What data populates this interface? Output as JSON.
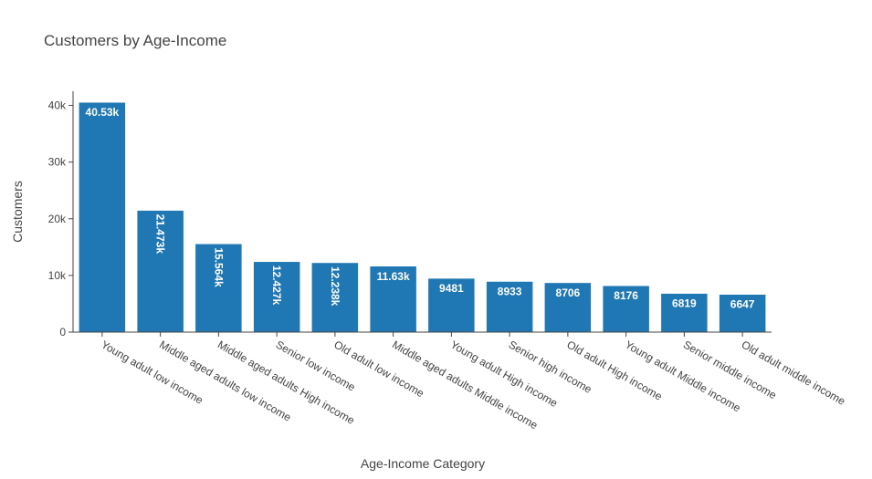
{
  "chart_data": {
    "type": "bar",
    "title": "Customers by Age-Income",
    "xlabel": "Age-Income  Category",
    "ylabel": "Customers",
    "ylim": [
      0,
      42500
    ],
    "yticks": [
      0,
      10000,
      20000,
      30000,
      40000
    ],
    "ytick_labels": [
      "0",
      "10k",
      "20k",
      "30k",
      "40k"
    ],
    "grid": false,
    "bar_color": "#1f77b4",
    "categories": [
      "Young adult low income",
      "Middle aged adults low income",
      "Middle aged adults High income",
      "Senior low income",
      "Old adult low income",
      "Middle aged adults Middle income",
      "Young adult High income",
      "Senior high income",
      "Old adult High income",
      "Young adult Middle income",
      "Senior middle income",
      "Old adult middle income"
    ],
    "values": [
      40530,
      21473,
      15564,
      12427,
      12238,
      11630,
      9481,
      8933,
      8706,
      8176,
      6819,
      6647
    ],
    "value_labels": [
      "40.53k",
      "21.473k",
      "15.564k",
      "12.427k",
      "12.238k",
      "11.63k",
      "9481",
      "8933",
      "8706",
      "8176",
      "6819",
      "6647"
    ],
    "label_rotated": [
      false,
      true,
      true,
      true,
      true,
      false,
      false,
      false,
      false,
      false,
      false,
      false
    ]
  }
}
